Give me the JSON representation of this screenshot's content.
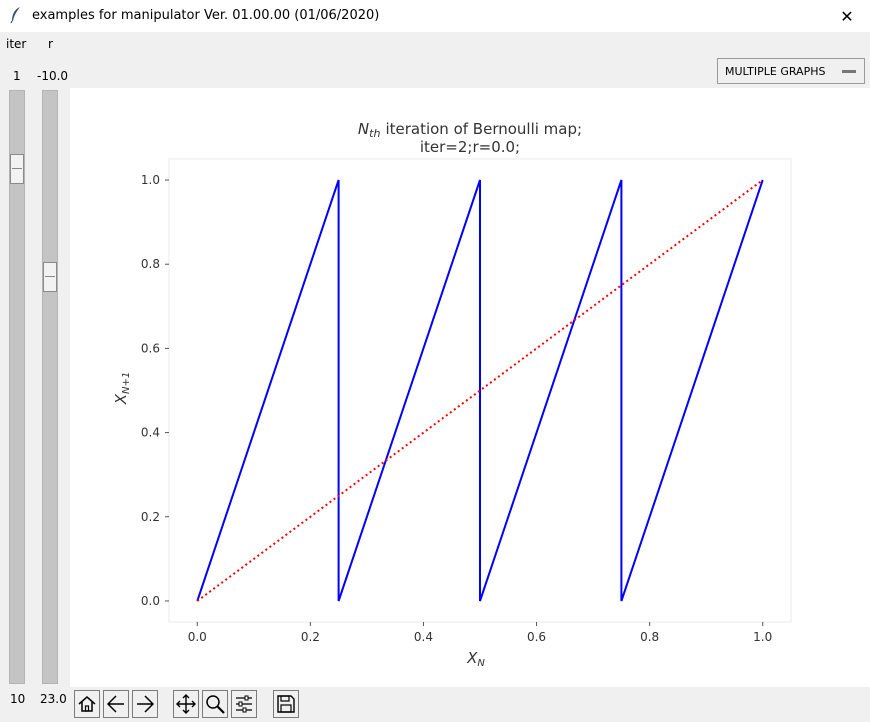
{
  "window": {
    "title": "examples for manipulator Ver. 01.00.00 (01/06/2020)",
    "close_glyph": "✕",
    "icon": "feather-icon"
  },
  "sliders": [
    {
      "label": "iter",
      "from_label": "1",
      "to_label": "10",
      "value": 2,
      "from": 1,
      "to": 10
    },
    {
      "label": "r",
      "from_label": "-10.0",
      "to_label": "23.0",
      "value": 0.0,
      "from": -10.0,
      "to": 23.0
    }
  ],
  "menu_button": {
    "label": "MULTIPLE GRAPHS"
  },
  "toolbar": {
    "buttons": [
      "home-icon",
      "back-arrow-icon",
      "forward-arrow-icon",
      "pan-icon",
      "zoom-icon",
      "configure-subplots-icon",
      "save-icon"
    ]
  },
  "chart_data": {
    "type": "line",
    "title_main": "iteration of Bernoulli map;",
    "title_sub": "iter=2;r=0.0;",
    "title_math": "N",
    "title_math_sub": "th",
    "xlabel": "X",
    "xlabel_sub": "N",
    "ylabel": "X",
    "ylabel_sub": "N+1",
    "xlim": [
      -0.05,
      1.05
    ],
    "ylim": [
      -0.05,
      1.05
    ],
    "xticks": [
      "0.0",
      "0.2",
      "0.4",
      "0.6",
      "0.8",
      "1.0"
    ],
    "yticks": [
      "0.0",
      "0.2",
      "0.4",
      "0.6",
      "0.8",
      "1.0"
    ],
    "series": [
      {
        "color": "#0000ff",
        "style": "solid",
        "x": [
          0,
          0.25,
          0.25,
          0.5,
          0.5,
          0.75,
          0.75,
          1.0
        ],
        "y": [
          0,
          1.0,
          0,
          1.0,
          0,
          1.0,
          0,
          1.0
        ]
      },
      {
        "color": "#ff0000",
        "style": "dotted",
        "x": [
          0,
          1.0
        ],
        "y": [
          0,
          1.0
        ]
      }
    ]
  }
}
